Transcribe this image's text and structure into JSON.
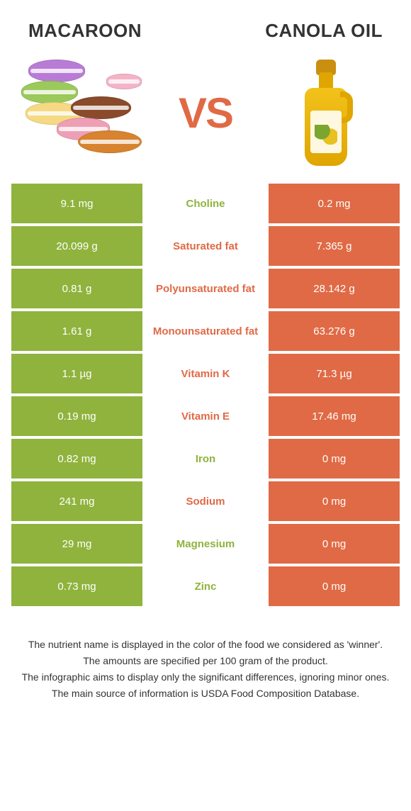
{
  "colors": {
    "green": "#8fb33d",
    "orange": "#e06a45",
    "text": "#333333",
    "background": "#ffffff"
  },
  "header": {
    "left_title": "Macaroon",
    "right_title": "Canola oil",
    "vs_label": "VS"
  },
  "rows": [
    {
      "nutrient": "Choline",
      "left": "9.1 mg",
      "right": "0.2 mg",
      "winner": "green"
    },
    {
      "nutrient": "Saturated fat",
      "left": "20.099 g",
      "right": "7.365 g",
      "winner": "orange"
    },
    {
      "nutrient": "Polyunsaturated fat",
      "left": "0.81 g",
      "right": "28.142 g",
      "winner": "orange"
    },
    {
      "nutrient": "Monounsaturated fat",
      "left": "1.61 g",
      "right": "63.276 g",
      "winner": "orange"
    },
    {
      "nutrient": "Vitamin K",
      "left": "1.1 µg",
      "right": "71.3 µg",
      "winner": "orange"
    },
    {
      "nutrient": "Vitamin E",
      "left": "0.19 mg",
      "right": "17.46 mg",
      "winner": "orange"
    },
    {
      "nutrient": "Iron",
      "left": "0.82 mg",
      "right": "0 mg",
      "winner": "green"
    },
    {
      "nutrient": "Sodium",
      "left": "241 mg",
      "right": "0 mg",
      "winner": "orange"
    },
    {
      "nutrient": "Magnesium",
      "left": "29 mg",
      "right": "0 mg",
      "winner": "green"
    },
    {
      "nutrient": "Zinc",
      "left": "0.73 mg",
      "right": "0 mg",
      "winner": "green"
    }
  ],
  "footer": {
    "line1": "The nutrient name is displayed in the color of the food we considered as 'winner'.",
    "line2": "The amounts are specified per 100 gram of the product.",
    "line3": "The infographic aims to display only the significant differences, ignoring minor ones.",
    "line4": "The main source of information is USDA Food Composition Database."
  }
}
